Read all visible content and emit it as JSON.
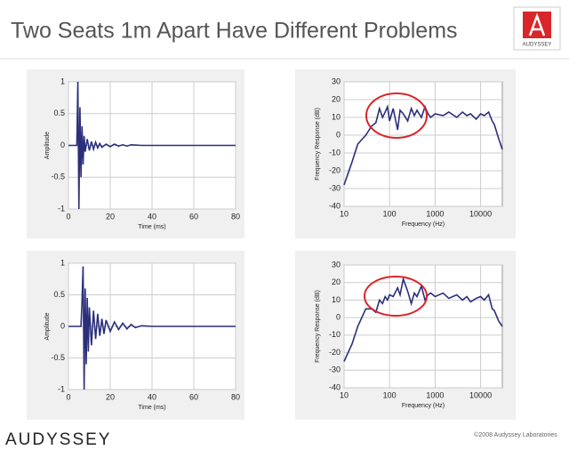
{
  "title": "Two Seats 1m Apart Have Different Problems",
  "logo": "AUDYSSEY",
  "footer": {
    "brand": "AUDYSSEY",
    "copyright": "©2008 Audyssey Laboratories"
  },
  "chart_data": [
    {
      "type": "line",
      "xlabel": "Time (ms)",
      "ylabel": "Amplitude",
      "color": "#2b2f7a",
      "grid": true,
      "xlim": [
        0,
        80
      ],
      "xticks": [
        0,
        20,
        40,
        60,
        80
      ],
      "ylim": [
        -1,
        1
      ],
      "yticks": [
        -1,
        -0.5,
        0,
        0.5,
        1
      ],
      "x": [
        0,
        4,
        4.5,
        5,
        5.5,
        6,
        6.5,
        7,
        7.5,
        8,
        9,
        10,
        11,
        12,
        13,
        14,
        15,
        16,
        18,
        20,
        22,
        24,
        26,
        28,
        30,
        35,
        40,
        80
      ],
      "values": [
        0,
        0,
        1,
        -1,
        0.6,
        -0.5,
        0.3,
        -0.3,
        0.15,
        -0.1,
        0.1,
        -0.08,
        0.06,
        -0.06,
        0.05,
        -0.04,
        0.03,
        -0.03,
        0.02,
        -0.02,
        0.02,
        -0.01,
        0.01,
        -0.01,
        0.01,
        0,
        0,
        0
      ]
    },
    {
      "type": "line",
      "xlabel": "Frequency (Hz)",
      "ylabel": "Frequency Response (dB)",
      "color": "#2b2f7a",
      "grid": true,
      "xscale": "log",
      "xlim": [
        10,
        30000
      ],
      "xticks": [
        10,
        100,
        1000,
        10000
      ],
      "ylim": [
        -40,
        30
      ],
      "yticks": [
        -40,
        -30,
        -20,
        -10,
        0,
        10,
        20,
        30
      ],
      "x": [
        10,
        15,
        20,
        30,
        40,
        50,
        60,
        70,
        80,
        90,
        100,
        120,
        150,
        170,
        200,
        250,
        300,
        350,
        400,
        500,
        600,
        700,
        800,
        1000,
        1500,
        2000,
        3000,
        4000,
        5000,
        6000,
        8000,
        10000,
        12000,
        15000,
        18000,
        20000,
        25000,
        30000
      ],
      "values": [
        -28,
        -15,
        -5,
        0,
        5,
        7,
        15,
        10,
        13,
        16,
        8,
        15,
        3,
        14,
        12,
        8,
        15,
        11,
        14,
        10,
        16,
        12,
        10,
        12,
        11,
        13,
        10,
        13,
        11,
        12,
        9,
        12,
        11,
        13,
        8,
        6,
        -2,
        -8
      ]
    },
    {
      "type": "line",
      "xlabel": "Time (ms)",
      "ylabel": "Amplitude",
      "color": "#2b2f7a",
      "grid": true,
      "xlim": [
        0,
        80
      ],
      "xticks": [
        0,
        20,
        40,
        60,
        80
      ],
      "ylim": [
        -1,
        1
      ],
      "yticks": [
        -1,
        -0.5,
        0,
        0.5,
        1
      ],
      "x": [
        0,
        6,
        6.5,
        7,
        7.5,
        8,
        8.5,
        9,
        9.5,
        10,
        11,
        12,
        13,
        14,
        15,
        16,
        17,
        18,
        20,
        22,
        24,
        26,
        28,
        30,
        32,
        35,
        40,
        80
      ],
      "values": [
        0,
        0,
        0.4,
        0.95,
        -1,
        0.6,
        -0.6,
        0.45,
        -0.4,
        0.3,
        -0.3,
        0.25,
        -0.2,
        0.2,
        -0.15,
        0.12,
        -0.12,
        0.1,
        -0.08,
        0.07,
        -0.05,
        0.05,
        -0.04,
        0.03,
        -0.02,
        0.01,
        0,
        0
      ]
    },
    {
      "type": "line",
      "xlabel": "Frequency (Hz)",
      "ylabel": "Frequency Response (dB)",
      "color": "#2b2f7a",
      "grid": true,
      "xscale": "log",
      "xlim": [
        10,
        30000
      ],
      "xticks": [
        10,
        100,
        1000,
        10000
      ],
      "ylim": [
        -40,
        30
      ],
      "yticks": [
        -40,
        -30,
        -20,
        -10,
        0,
        10,
        20,
        30
      ],
      "x": [
        10,
        15,
        20,
        30,
        40,
        50,
        60,
        70,
        80,
        90,
        100,
        120,
        150,
        170,
        200,
        250,
        300,
        350,
        400,
        500,
        600,
        700,
        800,
        1000,
        1500,
        2000,
        3000,
        4000,
        5000,
        6000,
        8000,
        10000,
        12000,
        15000,
        18000,
        20000,
        25000,
        30000
      ],
      "values": [
        -25,
        -15,
        -5,
        5,
        5,
        3,
        10,
        8,
        12,
        10,
        13,
        12,
        17,
        13,
        22,
        15,
        8,
        14,
        12,
        18,
        10,
        13,
        14,
        12,
        14,
        11,
        13,
        10,
        12,
        9,
        11,
        12,
        10,
        13,
        5,
        4,
        -2,
        -5
      ]
    }
  ]
}
